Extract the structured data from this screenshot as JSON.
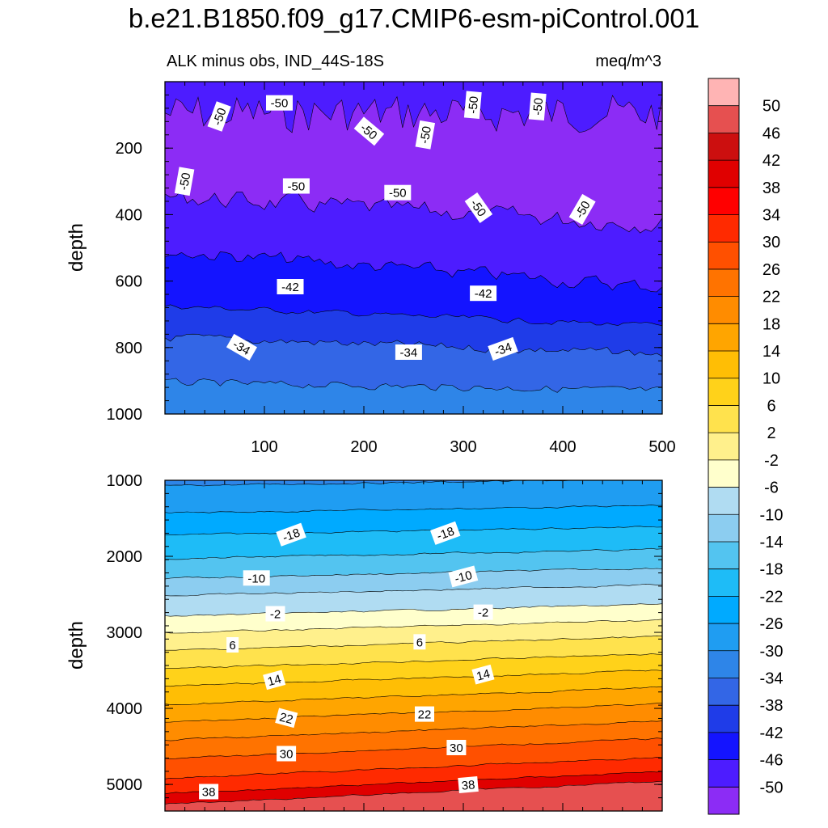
{
  "title": "b.e21.B1850.f09_g17.CMIP6-esm-piControl.001",
  "chart_data": [
    {
      "type": "heatmap",
      "subtype": "filled-contour",
      "left_label": "ALK minus obs, IND_44S-18S",
      "right_label": "meq/m^3",
      "ylabel": "depth",
      "xlabel": "",
      "xlim": [
        0,
        500
      ],
      "ylim": [
        1000,
        0
      ],
      "xticks": [
        "100",
        "200",
        "300",
        "400",
        "500"
      ],
      "yticks": [
        "200",
        "400",
        "600",
        "800",
        "1000"
      ],
      "xtick_values": [
        100,
        200,
        300,
        400,
        500
      ],
      "ytick_values": [
        200,
        400,
        600,
        800,
        1000
      ],
      "contour_labels": [
        {
          "text": "-50",
          "x": 55,
          "y": 105,
          "rot": -70
        },
        {
          "text": "-50",
          "x": 115,
          "y": 65,
          "rot": 0
        },
        {
          "text": "-50",
          "x": 205,
          "y": 150,
          "rot": 40
        },
        {
          "text": "-50",
          "x": 262,
          "y": 160,
          "rot": -80
        },
        {
          "text": "-50",
          "x": 310,
          "y": 70,
          "rot": -85
        },
        {
          "text": "-50",
          "x": 375,
          "y": 75,
          "rot": -85
        },
        {
          "text": "-50",
          "x": 20,
          "y": 300,
          "rot": -80
        },
        {
          "text": "-50",
          "x": 132,
          "y": 315,
          "rot": 0
        },
        {
          "text": "-50",
          "x": 234,
          "y": 335,
          "rot": 0
        },
        {
          "text": "-50",
          "x": 315,
          "y": 380,
          "rot": 55
        },
        {
          "text": "-50",
          "x": 420,
          "y": 385,
          "rot": -60
        },
        {
          "text": "-42",
          "x": 126,
          "y": 618,
          "rot": 0
        },
        {
          "text": "-42",
          "x": 320,
          "y": 638,
          "rot": 0
        },
        {
          "text": "-34",
          "x": 77,
          "y": 800,
          "rot": 30
        },
        {
          "text": "-34",
          "x": 245,
          "y": 815,
          "rot": 0
        },
        {
          "text": "-34",
          "x": 340,
          "y": 805,
          "rot": -20
        }
      ]
    },
    {
      "type": "heatmap",
      "subtype": "filled-contour",
      "ylabel": "depth",
      "xlabel": "",
      "xlim": [
        0,
        500
      ],
      "ylim": [
        5350,
        1000
      ],
      "yticks": [
        "1000",
        "2000",
        "3000",
        "4000",
        "5000"
      ],
      "ytick_values": [
        1000,
        2000,
        3000,
        4000,
        5000
      ],
      "contour_labels": [
        {
          "text": "-18",
          "x": 127,
          "y": 1720,
          "rot": -20
        },
        {
          "text": "-18",
          "x": 282,
          "y": 1700,
          "rot": -20
        },
        {
          "text": "-10",
          "x": 92,
          "y": 2290,
          "rot": 0
        },
        {
          "text": "-10",
          "x": 300,
          "y": 2270,
          "rot": -15
        },
        {
          "text": "-2",
          "x": 111,
          "y": 2760,
          "rot": 0
        },
        {
          "text": "-2",
          "x": 320,
          "y": 2740,
          "rot": 0
        },
        {
          "text": "6",
          "x": 68,
          "y": 3170,
          "rot": 0
        },
        {
          "text": "6",
          "x": 256,
          "y": 3130,
          "rot": 0
        },
        {
          "text": "14",
          "x": 110,
          "y": 3630,
          "rot": -15
        },
        {
          "text": "14",
          "x": 320,
          "y": 3560,
          "rot": -15
        },
        {
          "text": "22",
          "x": 122,
          "y": 4130,
          "rot": 15
        },
        {
          "text": "22",
          "x": 261,
          "y": 4080,
          "rot": 0
        },
        {
          "text": "30",
          "x": 122,
          "y": 4600,
          "rot": 0
        },
        {
          "text": "30",
          "x": 293,
          "y": 4520,
          "rot": 0
        },
        {
          "text": "38",
          "x": 44,
          "y": 5100,
          "rot": 0
        },
        {
          "text": "38",
          "x": 305,
          "y": 5010,
          "rot": -5
        }
      ]
    }
  ],
  "colorbar": {
    "colors": [
      "#8c2cf5",
      "#4d1cff",
      "#1414ff",
      "#1f3ce8",
      "#3366e6",
      "#2e85e8",
      "#1f9df2",
      "#00aaff",
      "#1ebcf7",
      "#53c4f0",
      "#8ccdf0",
      "#b0dcf2",
      "#ffffcc",
      "#fff08c",
      "#ffe24d",
      "#ffd21a",
      "#ffbe05",
      "#ffa500",
      "#ff8c00",
      "#ff7300",
      "#ff5000",
      "#ff2a00",
      "#ff0000",
      "#e00000",
      "#cc0f0f",
      "#e65050",
      "#ffb4b4"
    ],
    "labels": [
      "-50",
      "-46",
      "-42",
      "-38",
      "-34",
      "-30",
      "-26",
      "-22",
      "-18",
      "-14",
      "-10",
      "-6",
      "-2",
      "2",
      "6",
      "10",
      "14",
      "18",
      "22",
      "26",
      "30",
      "34",
      "38",
      "42",
      "46",
      "50"
    ]
  }
}
